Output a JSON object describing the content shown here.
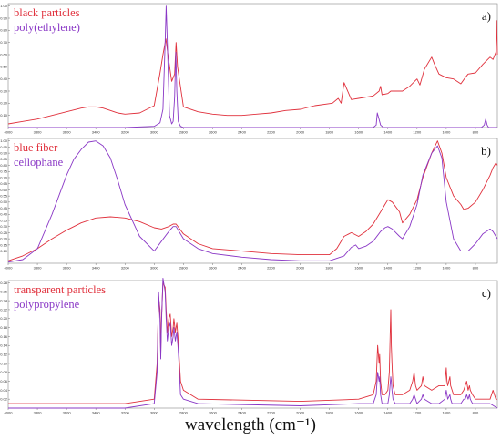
{
  "figure": {
    "xlabel": "wavelength (cm⁻¹)",
    "colors": {
      "red": "#e0303c",
      "purple": "#8a38c6"
    }
  },
  "chart_data": [
    {
      "type": "line",
      "panel_label": "a)",
      "x_range": [
        4000,
        650
      ],
      "y_range": [
        0,
        1.02
      ],
      "x_ticks": [
        4000,
        3800,
        3600,
        3400,
        3200,
        3000,
        2800,
        2600,
        2400,
        2200,
        2000,
        1800,
        1600,
        1400,
        1200,
        1000,
        800
      ],
      "y_ticks": [
        0.1,
        0.2,
        0.3,
        0.4,
        0.5,
        0.6,
        0.7,
        0.8,
        0.9,
        1.0
      ],
      "x_tick_labels": [
        "4000",
        "3800",
        "3600",
        "3400",
        "3200",
        "3000",
        "2800",
        "2600",
        "2400",
        "2200",
        "2000",
        "1800",
        "1600",
        "1400",
        "1200",
        "1000",
        "800"
      ],
      "y_tick_labels": [
        "0.10",
        "0.20",
        "0.30",
        "0.40",
        "0.50",
        "0.60",
        "0.70",
        "0.80",
        "0.90",
        "1.00"
      ],
      "series": [
        {
          "name": "black particles",
          "color": "red",
          "x": [
            4000,
            3900,
            3800,
            3700,
            3600,
            3500,
            3450,
            3400,
            3350,
            3300,
            3250,
            3200,
            3100,
            3000,
            2960,
            2940,
            2920,
            2900,
            2880,
            2860,
            2850,
            2840,
            2800,
            2700,
            2600,
            2500,
            2400,
            2300,
            2200,
            2100,
            2000,
            1900,
            1780,
            1740,
            1720,
            1700,
            1650,
            1600,
            1500,
            1460,
            1450,
            1440,
            1400,
            1380,
            1300,
            1250,
            1200,
            1180,
            1150,
            1100,
            1080,
            1050,
            1000,
            950,
            900,
            870,
            850,
            800,
            750,
            700,
            680,
            660,
            655,
            650
          ],
          "y": [
            0.03,
            0.05,
            0.07,
            0.1,
            0.13,
            0.16,
            0.17,
            0.17,
            0.16,
            0.14,
            0.12,
            0.11,
            0.12,
            0.18,
            0.45,
            0.6,
            0.73,
            0.55,
            0.38,
            0.44,
            0.7,
            0.5,
            0.17,
            0.13,
            0.11,
            0.1,
            0.1,
            0.11,
            0.12,
            0.14,
            0.15,
            0.18,
            0.2,
            0.24,
            0.2,
            0.37,
            0.23,
            0.24,
            0.26,
            0.3,
            0.34,
            0.27,
            0.28,
            0.3,
            0.3,
            0.34,
            0.4,
            0.35,
            0.48,
            0.58,
            0.52,
            0.44,
            0.41,
            0.4,
            0.36,
            0.41,
            0.44,
            0.45,
            0.52,
            0.58,
            0.56,
            0.62,
            0.88,
            0.6
          ]
        },
        {
          "name": "poly(ethylene)",
          "color": "purple",
          "x": [
            4000,
            3200,
            3000,
            2960,
            2940,
            2925,
            2918,
            2910,
            2895,
            2880,
            2870,
            2860,
            2852,
            2845,
            2835,
            2820,
            2800,
            2600,
            2000,
            1500,
            1480,
            1472,
            1463,
            1450,
            1430,
            1400,
            1000,
            760,
            740,
            730,
            720,
            710,
            700,
            650
          ],
          "y": [
            0.0,
            0.0,
            0.01,
            0.04,
            0.15,
            0.7,
            1.0,
            0.7,
            0.1,
            0.03,
            0.05,
            0.25,
            0.62,
            0.3,
            0.05,
            0.01,
            0.0,
            0.0,
            0.0,
            0.0,
            0.02,
            0.12,
            0.08,
            0.02,
            0.0,
            0.0,
            0.0,
            0.0,
            0.02,
            0.07,
            0.02,
            0.0,
            0.0,
            0.0
          ]
        }
      ]
    },
    {
      "type": "line",
      "panel_label": "b)",
      "x_range": [
        4000,
        650
      ],
      "y_range": [
        0,
        1.02
      ],
      "x_ticks": [
        4000,
        3800,
        3600,
        3400,
        3200,
        3000,
        2800,
        2600,
        2400,
        2200,
        2000,
        1800,
        1600,
        1400,
        1200,
        1000,
        800
      ],
      "y_ticks": [
        0.1,
        0.15,
        0.2,
        0.25,
        0.3,
        0.35,
        0.4,
        0.45,
        0.5,
        0.55,
        0.6,
        0.65,
        0.7,
        0.75,
        0.8,
        0.85,
        0.9,
        0.95,
        1.0
      ],
      "x_tick_labels": [
        "4000",
        "3800",
        "3600",
        "3400",
        "3200",
        "3000",
        "2800",
        "2600",
        "2400",
        "2200",
        "2000",
        "1800",
        "1600",
        "1400",
        "1200",
        "1000",
        "800"
      ],
      "y_tick_labels": [
        "0.10",
        "0.15",
        "0.20",
        "0.25",
        "0.30",
        "0.35",
        "0.40",
        "0.45",
        "0.50",
        "0.55",
        "0.60",
        "0.65",
        "0.70",
        "0.75",
        "0.80",
        "0.85",
        "0.90",
        "0.95",
        "1.00"
      ],
      "series": [
        {
          "name": "blue fiber",
          "color": "red",
          "x": [
            4000,
            3900,
            3800,
            3700,
            3600,
            3500,
            3400,
            3300,
            3200,
            3100,
            3000,
            2950,
            2900,
            2870,
            2850,
            2800,
            2700,
            2600,
            2400,
            2200,
            2000,
            1800,
            1750,
            1700,
            1650,
            1600,
            1550,
            1500,
            1450,
            1420,
            1400,
            1370,
            1320,
            1300,
            1250,
            1200,
            1160,
            1100,
            1060,
            1030,
            1000,
            950,
            900,
            880,
            850,
            800,
            750,
            700,
            680,
            660,
            650
          ],
          "y": [
            0.02,
            0.06,
            0.12,
            0.2,
            0.27,
            0.33,
            0.37,
            0.38,
            0.37,
            0.34,
            0.29,
            0.28,
            0.3,
            0.32,
            0.32,
            0.24,
            0.16,
            0.12,
            0.1,
            0.08,
            0.07,
            0.07,
            0.12,
            0.22,
            0.25,
            0.22,
            0.26,
            0.32,
            0.42,
            0.48,
            0.52,
            0.5,
            0.42,
            0.33,
            0.4,
            0.52,
            0.7,
            0.9,
            1.0,
            0.9,
            0.7,
            0.55,
            0.48,
            0.44,
            0.45,
            0.5,
            0.6,
            0.72,
            0.78,
            0.82,
            0.8
          ]
        },
        {
          "name": "cellophane",
          "color": "purple",
          "x": [
            4000,
            3900,
            3800,
            3700,
            3600,
            3550,
            3500,
            3450,
            3400,
            3350,
            3300,
            3250,
            3200,
            3100,
            3000,
            2950,
            2900,
            2870,
            2850,
            2800,
            2700,
            2600,
            2400,
            2200,
            2000,
            1800,
            1700,
            1650,
            1620,
            1600,
            1550,
            1500,
            1450,
            1420,
            1400,
            1370,
            1320,
            1300,
            1250,
            1200,
            1160,
            1100,
            1060,
            1030,
            1000,
            950,
            900,
            850,
            800,
            750,
            700,
            680,
            660,
            650
          ],
          "y": [
            0.01,
            0.03,
            0.12,
            0.4,
            0.72,
            0.85,
            0.93,
            0.99,
            1.0,
            0.96,
            0.86,
            0.68,
            0.48,
            0.22,
            0.1,
            0.18,
            0.26,
            0.3,
            0.3,
            0.2,
            0.12,
            0.08,
            0.05,
            0.03,
            0.02,
            0.02,
            0.06,
            0.13,
            0.15,
            0.12,
            0.14,
            0.18,
            0.26,
            0.29,
            0.3,
            0.28,
            0.22,
            0.2,
            0.3,
            0.48,
            0.72,
            0.9,
            0.96,
            0.86,
            0.5,
            0.2,
            0.1,
            0.1,
            0.16,
            0.24,
            0.28,
            0.26,
            0.22,
            0.2
          ]
        }
      ]
    },
    {
      "type": "line",
      "panel_label": "c)",
      "x_range": [
        4000,
        650
      ],
      "y_range": [
        0,
        0.285
      ],
      "x_ticks": [
        4000,
        3800,
        3600,
        3400,
        3200,
        3000,
        2800,
        2600,
        2400,
        2200,
        2000,
        1800,
        1600,
        1400,
        1200,
        1000,
        800
      ],
      "y_ticks": [
        0.02,
        0.04,
        0.06,
        0.08,
        0.1,
        0.12,
        0.14,
        0.16,
        0.18,
        0.2,
        0.22,
        0.24,
        0.26,
        0.28
      ],
      "x_tick_labels": [
        "4000",
        "3800",
        "3600",
        "3400",
        "3200",
        "3000",
        "2800",
        "2600",
        "2400",
        "2200",
        "2000",
        "1800",
        "1600",
        "1400",
        "1200",
        "1000",
        "800"
      ],
      "y_tick_labels": [
        "0.02",
        "0.04",
        "0.06",
        "0.08",
        "0.10",
        "0.12",
        "0.14",
        "0.16",
        "0.18",
        "0.20",
        "0.22",
        "0.24",
        "0.26",
        "0.28"
      ],
      "series": [
        {
          "name": "transparent particles",
          "color": "red",
          "x": [
            4000,
            3200,
            3000,
            2980,
            2970,
            2960,
            2955,
            2950,
            2940,
            2925,
            2918,
            2910,
            2900,
            2890,
            2880,
            2870,
            2865,
            2855,
            2845,
            2838,
            2830,
            2820,
            2800,
            2700,
            2000,
            1600,
            1500,
            1480,
            1470,
            1460,
            1456,
            1450,
            1440,
            1420,
            1400,
            1390,
            1380,
            1376,
            1372,
            1365,
            1350,
            1300,
            1250,
            1230,
            1220,
            1210,
            1200,
            1170,
            1160,
            1150,
            1100,
            1050,
            1010,
            1000,
            995,
            990,
            975,
            970,
            960,
            950,
            900,
            880,
            870,
            860,
            850,
            841,
            835,
            820,
            800,
            750,
            700,
            680,
            670,
            660,
            650
          ],
          "y": [
            0.01,
            0.01,
            0.02,
            0.1,
            0.25,
            0.22,
            0.12,
            0.2,
            0.28,
            0.27,
            0.22,
            0.17,
            0.2,
            0.21,
            0.16,
            0.18,
            0.2,
            0.17,
            0.19,
            0.16,
            0.12,
            0.06,
            0.04,
            0.02,
            0.015,
            0.02,
            0.03,
            0.06,
            0.14,
            0.1,
            0.12,
            0.06,
            0.03,
            0.03,
            0.04,
            0.08,
            0.22,
            0.14,
            0.1,
            0.05,
            0.03,
            0.03,
            0.04,
            0.06,
            0.08,
            0.05,
            0.04,
            0.05,
            0.07,
            0.05,
            0.04,
            0.05,
            0.05,
            0.09,
            0.06,
            0.05,
            0.07,
            0.05,
            0.04,
            0.03,
            0.03,
            0.04,
            0.05,
            0.06,
            0.04,
            0.05,
            0.04,
            0.03,
            0.02,
            0.02,
            0.02,
            0.04,
            0.03,
            0.02,
            0.02
          ]
        },
        {
          "name": "polypropylene",
          "color": "purple",
          "x": [
            4000,
            3200,
            3000,
            2980,
            2970,
            2960,
            2955,
            2950,
            2940,
            2925,
            2918,
            2910,
            2900,
            2890,
            2880,
            2870,
            2865,
            2855,
            2845,
            2838,
            2830,
            2820,
            2800,
            2700,
            2000,
            1600,
            1500,
            1480,
            1470,
            1460,
            1456,
            1450,
            1440,
            1420,
            1400,
            1390,
            1380,
            1376,
            1372,
            1365,
            1350,
            1300,
            1250,
            1230,
            1220,
            1210,
            1200,
            1170,
            1160,
            1150,
            1100,
            1050,
            1010,
            1000,
            995,
            990,
            975,
            970,
            960,
            950,
            900,
            880,
            870,
            860,
            850,
            841,
            835,
            820,
            800,
            750,
            700,
            650
          ],
          "y": [
            0.0,
            0.0,
            0.01,
            0.08,
            0.26,
            0.2,
            0.11,
            0.19,
            0.29,
            0.26,
            0.2,
            0.15,
            0.18,
            0.19,
            0.14,
            0.16,
            0.18,
            0.15,
            0.17,
            0.14,
            0.1,
            0.03,
            0.02,
            0.01,
            0.005,
            0.01,
            0.01,
            0.03,
            0.08,
            0.06,
            0.07,
            0.03,
            0.01,
            0.01,
            0.01,
            0.03,
            0.07,
            0.06,
            0.04,
            0.02,
            0.01,
            0.01,
            0.01,
            0.02,
            0.03,
            0.02,
            0.01,
            0.02,
            0.03,
            0.02,
            0.01,
            0.01,
            0.02,
            0.04,
            0.03,
            0.02,
            0.03,
            0.02,
            0.01,
            0.01,
            0.01,
            0.02,
            0.02,
            0.03,
            0.02,
            0.03,
            0.02,
            0.01,
            0.01,
            0.01,
            0.01,
            0.0
          ]
        }
      ]
    }
  ]
}
